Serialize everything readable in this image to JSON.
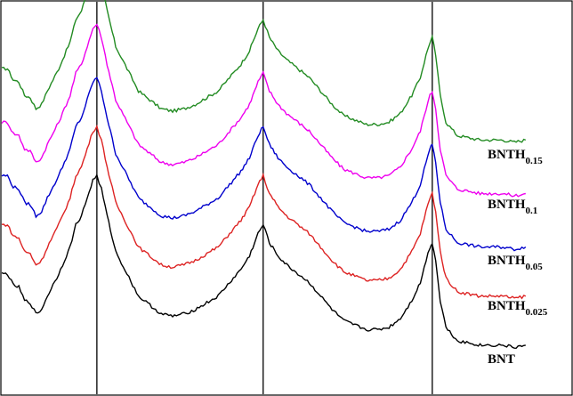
{
  "chart_data": {
    "type": "line",
    "title": "",
    "xlabel": "",
    "ylabel": "",
    "grid": false,
    "legend": "labels at right end of each curve",
    "xlim": [
      0,
      100
    ],
    "ylim": [
      0,
      100
    ],
    "axis_ticks_shown": false,
    "reference_lines_x": [
      16.7,
      45.9,
      75.6
    ],
    "series": [
      {
        "label_main": "BNTH",
        "label_sub": "0.15",
        "color": "#228B22",
        "offset": 46,
        "x": [
          0,
          1,
          2,
          3,
          4,
          5,
          6,
          7,
          8,
          10,
          12,
          13,
          14,
          15,
          16,
          16.7,
          17.5,
          18.5,
          20,
          22,
          24,
          26,
          28,
          30,
          32,
          34,
          36,
          38,
          40,
          42,
          43.5,
          45,
          45.9,
          47,
          48.5,
          50,
          52,
          54,
          56,
          58,
          60,
          62,
          64,
          66,
          68,
          70,
          72,
          73.5,
          74.5,
          75.2,
          75.6,
          76.2,
          77,
          78,
          80,
          82,
          84,
          86,
          88,
          90,
          92
        ],
        "values": [
          27,
          27,
          24.5,
          24,
          21,
          20.5,
          18,
          19,
          22,
          27,
          33,
          38,
          40,
          44,
          48,
          49,
          46,
          40,
          32,
          27,
          22,
          20,
          18,
          17.5,
          18,
          19,
          20.5,
          22,
          25,
          28,
          31,
          36,
          38,
          34,
          31,
          29,
          27,
          25,
          22,
          19,
          16.5,
          15.5,
          14.5,
          14.5,
          15,
          17,
          21,
          25,
          30,
          33,
          34,
          30,
          21,
          15,
          12,
          11.5,
          11,
          11,
          11,
          10.5,
          11
        ]
      },
      {
        "label_main": "BNTH",
        "label_sub": "0.1",
        "color": "#EE00EE",
        "offset": 34,
        "x": [
          0,
          1,
          2,
          3,
          4,
          5,
          6,
          7,
          8,
          10,
          12,
          13,
          14,
          15,
          16,
          16.7,
          17.5,
          18.5,
          20,
          22,
          24,
          26,
          28,
          30,
          32,
          34,
          36,
          38,
          40,
          42,
          43.5,
          45,
          45.9,
          47,
          48.5,
          50,
          52,
          54,
          56,
          58,
          60,
          62,
          64,
          66,
          68,
          70,
          72,
          73.5,
          74.5,
          75.2,
          75.6,
          76.2,
          77,
          78,
          80,
          82,
          84,
          86,
          88,
          90,
          92
        ],
        "values": [
          27,
          27,
          24.5,
          24,
          21,
          20.5,
          18,
          19,
          22,
          27,
          33,
          38,
          40,
          44,
          48,
          49,
          46,
          40,
          32,
          27,
          22,
          20,
          18,
          17.5,
          18,
          19,
          20.5,
          22,
          25,
          28,
          31,
          36,
          38,
          34,
          31,
          29,
          27,
          25,
          22,
          19,
          16.5,
          15.5,
          14.5,
          14.5,
          15,
          17,
          21,
          25,
          30,
          33,
          34,
          30,
          21,
          15,
          12,
          11.5,
          11,
          11,
          11,
          10.5,
          11
        ]
      },
      {
        "label_main": "BNTH",
        "label_sub": "0.05",
        "color": "#0000CC",
        "offset": 22,
        "x": [
          0,
          1,
          2,
          3,
          4,
          5,
          6,
          7,
          8,
          10,
          12,
          13,
          14,
          15,
          16,
          16.7,
          17.5,
          18.5,
          20,
          22,
          24,
          26,
          28,
          30,
          32,
          34,
          36,
          38,
          40,
          42,
          43.5,
          45,
          45.9,
          47,
          48.5,
          50,
          52,
          54,
          56,
          58,
          60,
          62,
          64,
          66,
          68,
          70,
          72,
          73.5,
          74.5,
          75.2,
          75.6,
          76.2,
          77,
          78,
          80,
          82,
          84,
          86,
          88,
          90,
          92
        ],
        "values": [
          27,
          27,
          24.5,
          24,
          21,
          20.5,
          18,
          19,
          22,
          27,
          33,
          38,
          40,
          44,
          48,
          49,
          46,
          40,
          32,
          27,
          22,
          20,
          18,
          17.5,
          18,
          19,
          20.5,
          22,
          25,
          28,
          31,
          36,
          38,
          34,
          31,
          29,
          27,
          25,
          22,
          19,
          16.5,
          15.5,
          14.5,
          14.5,
          15,
          17,
          21,
          25,
          30,
          33,
          34,
          30,
          21,
          15,
          12,
          11.5,
          11,
          11,
          11,
          10.5,
          11
        ]
      },
      {
        "label_main": "BNTH",
        "label_sub": "0.025",
        "color": "#DD2222",
        "offset": 11,
        "x": [
          0,
          1,
          2,
          3,
          4,
          5,
          6,
          7,
          8,
          10,
          12,
          13,
          14,
          15,
          16,
          16.7,
          17.5,
          18.5,
          20,
          22,
          24,
          26,
          28,
          30,
          32,
          34,
          36,
          38,
          40,
          42,
          43.5,
          45,
          45.9,
          47,
          48.5,
          50,
          52,
          54,
          56,
          58,
          60,
          62,
          64,
          66,
          68,
          70,
          72,
          73.5,
          74.5,
          75.2,
          75.6,
          76.2,
          77,
          78,
          80,
          82,
          84,
          86,
          88,
          90,
          92
        ],
        "values": [
          27,
          27,
          24.5,
          24,
          21,
          20.5,
          18,
          19,
          22,
          27,
          33,
          38,
          40,
          44,
          48,
          49,
          46,
          40,
          32,
          27,
          22,
          20,
          18,
          17.5,
          18,
          19,
          20.5,
          22,
          25,
          28,
          31,
          36,
          38,
          34,
          31,
          29,
          27,
          25,
          22,
          19,
          16.5,
          15.5,
          14.5,
          14.5,
          15,
          17,
          21,
          25,
          30,
          33,
          34,
          30,
          21,
          15,
          12,
          11.5,
          11,
          11,
          11,
          10.5,
          11
        ]
      },
      {
        "label_main": "BNT",
        "label_sub": "",
        "color": "#000000",
        "offset": 0,
        "x": [
          0,
          1,
          2,
          3,
          4,
          5,
          6,
          7,
          8,
          10,
          12,
          13,
          14,
          15,
          16,
          16.7,
          17.5,
          18.5,
          20,
          22,
          24,
          26,
          28,
          30,
          32,
          34,
          36,
          38,
          40,
          42,
          43.5,
          45,
          45.9,
          47,
          48.5,
          50,
          52,
          54,
          56,
          58,
          60,
          62,
          64,
          66,
          68,
          70,
          72,
          73.5,
          74.5,
          75.2,
          75.6,
          76.2,
          77,
          78,
          80,
          82,
          84,
          86,
          88,
          90,
          92
        ],
        "values": [
          27,
          27,
          24.5,
          24,
          21,
          20.5,
          18,
          19,
          22,
          27,
          33,
          38,
          40,
          44,
          48,
          49,
          46,
          40,
          32,
          27,
          22,
          20,
          18,
          17.5,
          18,
          19,
          20.5,
          22,
          25,
          28,
          31,
          36,
          38,
          34,
          31,
          29,
          27,
          25,
          22,
          19,
          16.5,
          15.5,
          14.5,
          14.5,
          15,
          17,
          21,
          25,
          30,
          33,
          34,
          30,
          21,
          15,
          12,
          11.5,
          11,
          11,
          11,
          10.5,
          11
        ]
      }
    ]
  }
}
